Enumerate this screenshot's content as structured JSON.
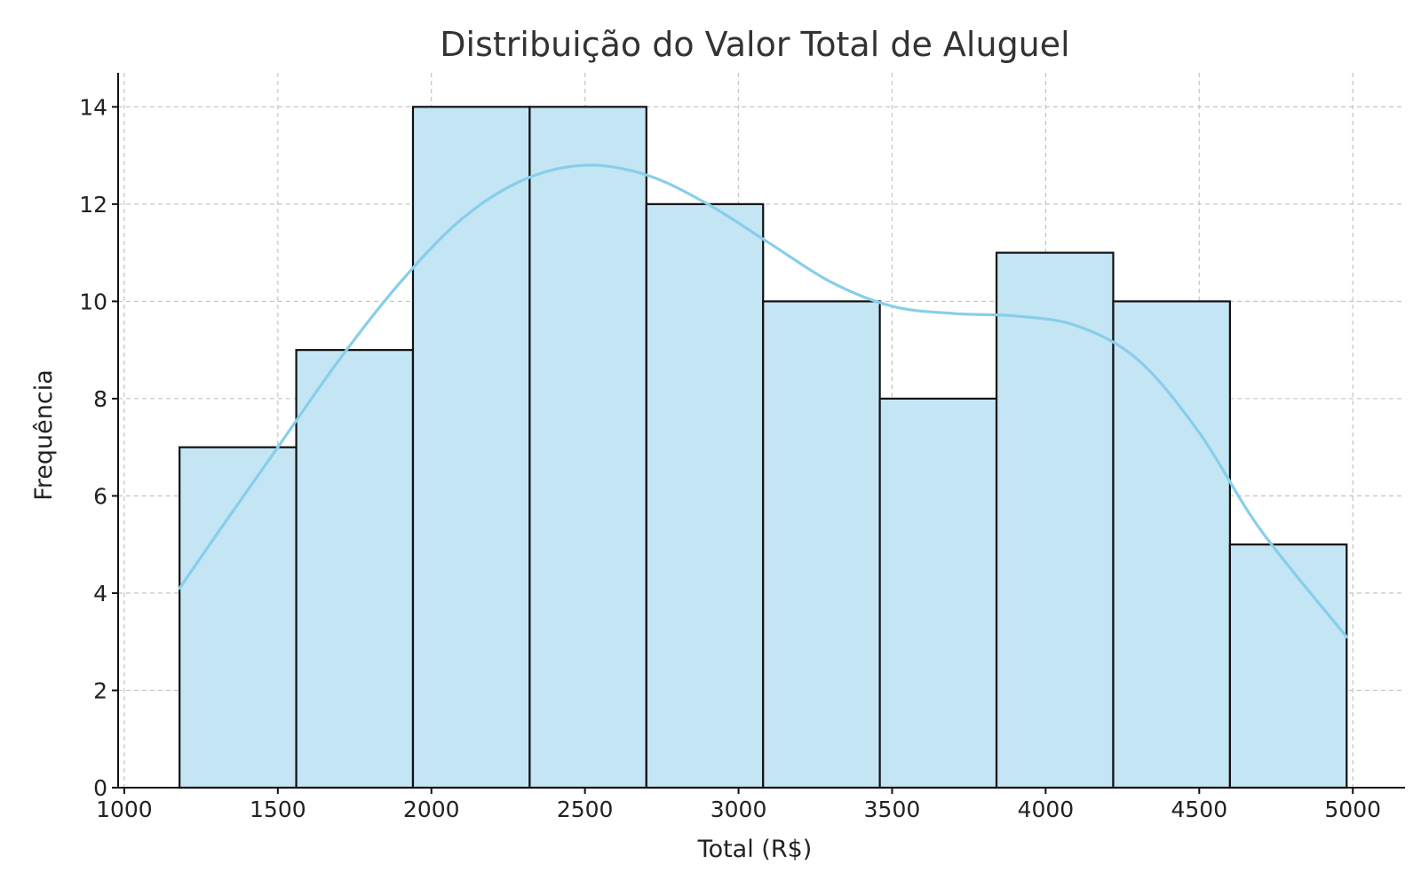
{
  "chart_data": {
    "type": "bar",
    "title": "Distribuição do Valor Total de Aluguel",
    "xlabel": "Total (R$)",
    "ylabel": "Frequência",
    "xlim": [
      980,
      5170
    ],
    "ylim": [
      0,
      14.7
    ],
    "xticks": [
      1000,
      1500,
      2000,
      2500,
      3000,
      3500,
      4000,
      4500,
      5000
    ],
    "yticks": [
      0,
      2,
      4,
      6,
      8,
      10,
      12,
      14
    ],
    "grid": true,
    "bins": [
      {
        "x0": 1180,
        "x1": 1560,
        "count": 7
      },
      {
        "x0": 1560,
        "x1": 1940,
        "count": 9
      },
      {
        "x0": 1940,
        "x1": 2320,
        "count": 14
      },
      {
        "x0": 2320,
        "x1": 2700,
        "count": 14
      },
      {
        "x0": 2700,
        "x1": 3080,
        "count": 12
      },
      {
        "x0": 3080,
        "x1": 3460,
        "count": 10
      },
      {
        "x0": 3460,
        "x1": 3840,
        "count": 8
      },
      {
        "x0": 3840,
        "x1": 4220,
        "count": 11
      },
      {
        "x0": 4220,
        "x1": 4600,
        "count": 10
      },
      {
        "x0": 4600,
        "x1": 4980,
        "count": 5
      }
    ],
    "kde": {
      "x": [
        1180,
        1300,
        1500,
        1700,
        1900,
        2100,
        2300,
        2500,
        2700,
        2900,
        3100,
        3300,
        3500,
        3700,
        3900,
        4100,
        4300,
        4500,
        4700,
        4980
      ],
      "y": [
        4.1,
        5.2,
        7.0,
        8.8,
        10.4,
        11.7,
        12.5,
        12.8,
        12.6,
        12.0,
        11.2,
        10.4,
        9.9,
        9.75,
        9.7,
        9.5,
        8.8,
        7.3,
        5.3,
        3.1
      ]
    }
  }
}
